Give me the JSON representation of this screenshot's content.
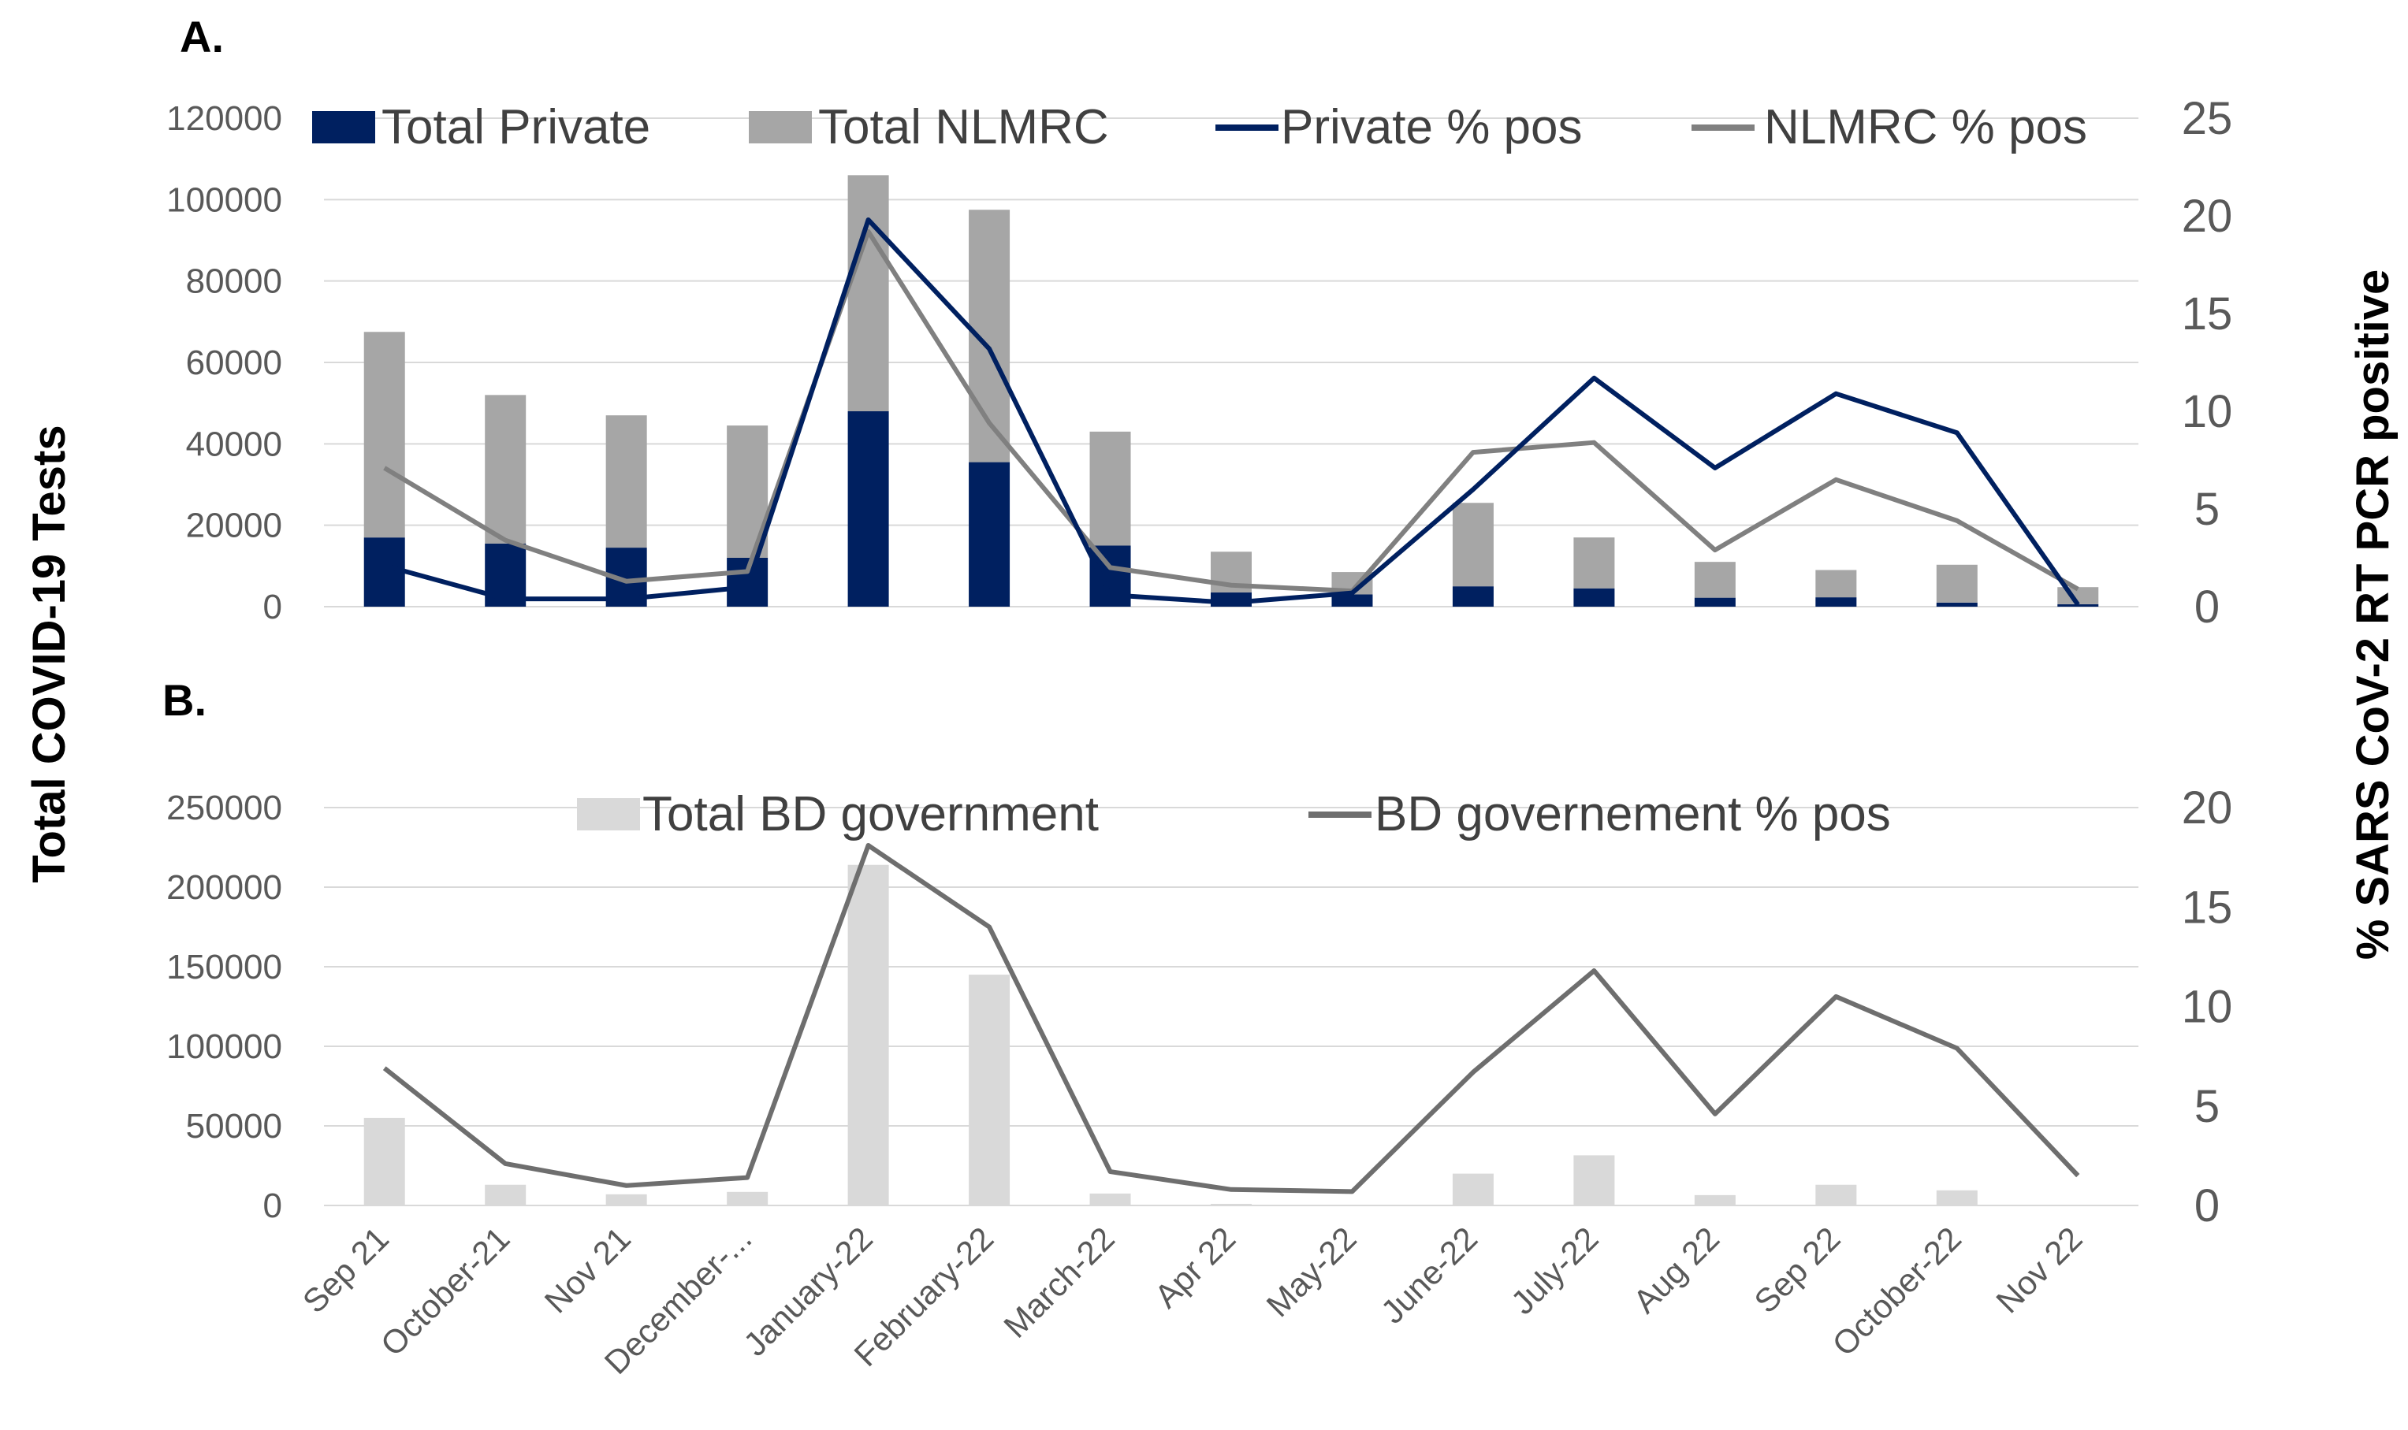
{
  "colors": {
    "private": "#002060",
    "nlmrc": "#A6A6A6",
    "nlmrc_line": "#808080",
    "bd_bar": "#D9D9D9",
    "bd_line": "#6E6E6E",
    "grid": "#D9D9D9",
    "tick": "#595959"
  },
  "axis_titles": {
    "y_left": "Total COVID-19 Tests",
    "y_right": "% SARS CoV-2 RT PCR positive"
  },
  "chart_data": [
    {
      "panel": "A.",
      "type": "bar",
      "stacked": true,
      "categories": [
        "Sep 21",
        "October-21",
        "Nov 21",
        "December-...",
        "January-22",
        "February-22",
        "March-22",
        "Apr 22",
        "May-22",
        "June-22",
        "July-22",
        "Aug 22",
        "Sep 22",
        "October-22",
        "Nov 22"
      ],
      "y_ticks": [
        "0",
        "20000",
        "40000",
        "60000",
        "80000",
        "100000",
        "120000"
      ],
      "y2_ticks": [
        "0",
        "5",
        "10",
        "15",
        "20",
        "25"
      ],
      "ylim": [
        0,
        120000
      ],
      "y2lim": [
        0,
        25
      ],
      "grid": true,
      "legend_position": "top",
      "series": [
        {
          "name": "Total Private",
          "kind": "bar",
          "values": [
            17000,
            15500,
            14500,
            12000,
            48000,
            35500,
            15000,
            3500,
            3000,
            5000,
            4500,
            2200,
            2300,
            1000,
            600
          ]
        },
        {
          "name": "Total NLMRC",
          "kind": "bar",
          "values": [
            50500,
            36500,
            32500,
            32500,
            58000,
            62000,
            28000,
            10000,
            5500,
            20500,
            12500,
            8800,
            6700,
            9300,
            4200
          ]
        },
        {
          "name": "Private % pos",
          "kind": "line",
          "axis": "right",
          "values": [
            2.1,
            0.4,
            0.4,
            1.0,
            19.8,
            13.2,
            0.6,
            0.2,
            0.7,
            6.0,
            11.7,
            7.1,
            10.9,
            8.9,
            0.1
          ]
        },
        {
          "name": "NLMRC % pos",
          "kind": "line",
          "axis": "right",
          "values": [
            7.1,
            3.4,
            1.3,
            1.8,
            19.2,
            9.4,
            2.0,
            1.1,
            0.8,
            7.9,
            8.4,
            2.9,
            6.5,
            4.4,
            0.9
          ]
        }
      ]
    },
    {
      "panel": "B.",
      "type": "bar",
      "categories": [
        "Sep 21",
        "October-21",
        "Nov 21",
        "December-...",
        "January-22",
        "February-22",
        "March-22",
        "Apr 22",
        "May-22",
        "June-22",
        "July-22",
        "Aug 22",
        "Sep 22",
        "October-22",
        "Nov 22"
      ],
      "x_ticks": [
        "Sep 21",
        "October-21",
        "Nov 21",
        "December-...",
        "January-22",
        "February-22",
        "March-22",
        "Apr 22",
        "May-22",
        "June-22",
        "July-22",
        "Aug 22",
        "Sep 22",
        "October-22",
        "Nov 22"
      ],
      "y_ticks": [
        "0",
        "50000",
        "100000",
        "150000",
        "200000",
        "250000"
      ],
      "y2_ticks": [
        "0",
        "5",
        "10",
        "15",
        "20"
      ],
      "ylim": [
        0,
        250000
      ],
      "y2lim": [
        0,
        20
      ],
      "grid": true,
      "legend_position": "top",
      "series": [
        {
          "name": "Total BD government",
          "kind": "bar",
          "values": [
            55000,
            13000,
            7000,
            8500,
            214000,
            145000,
            7500,
            1000,
            500,
            20000,
            31500,
            6500,
            13000,
            9500,
            500
          ]
        },
        {
          "name": "BD governement % pos",
          "kind": "line",
          "axis": "right",
          "values": [
            6.9,
            2.1,
            1.0,
            1.4,
            18.1,
            14.0,
            1.7,
            0.8,
            0.7,
            6.7,
            11.8,
            4.6,
            10.5,
            7.9,
            1.5
          ]
        }
      ]
    }
  ]
}
